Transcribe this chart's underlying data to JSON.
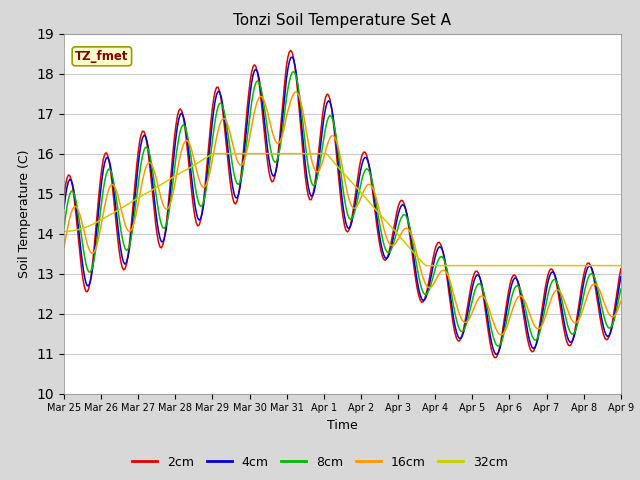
{
  "title": "Tonzi Soil Temperature Set A",
  "xlabel": "Time",
  "ylabel": "Soil Temperature (C)",
  "ylim": [
    10.0,
    19.0
  ],
  "yticks": [
    10.0,
    11.0,
    12.0,
    13.0,
    14.0,
    15.0,
    16.0,
    17.0,
    18.0,
    19.0
  ],
  "xtick_labels": [
    "Mar 25",
    "Mar 26",
    "Mar 27",
    "Mar 28",
    "Mar 29",
    "Mar 30",
    "Mar 31",
    "Apr 1",
    "Apr 2",
    "Apr 3",
    "Apr 4",
    "Apr 5",
    "Apr 6",
    "Apr 7",
    "Apr 8",
    "Apr 9"
  ],
  "annotation_label": "TZ_fmet",
  "annotation_color": "#880000",
  "annotation_bg": "#ffffcc",
  "annotation_border": "#999900",
  "series_colors": [
    "#dd0000",
    "#0000cc",
    "#00bb00",
    "#ff9900",
    "#cccc00"
  ],
  "series_labels": [
    "2cm",
    "4cm",
    "8cm",
    "16cm",
    "32cm"
  ],
  "fig_bg_color": "#d8d8d8",
  "plot_bg_color": "#ffffff",
  "grid_color": "#cccccc"
}
